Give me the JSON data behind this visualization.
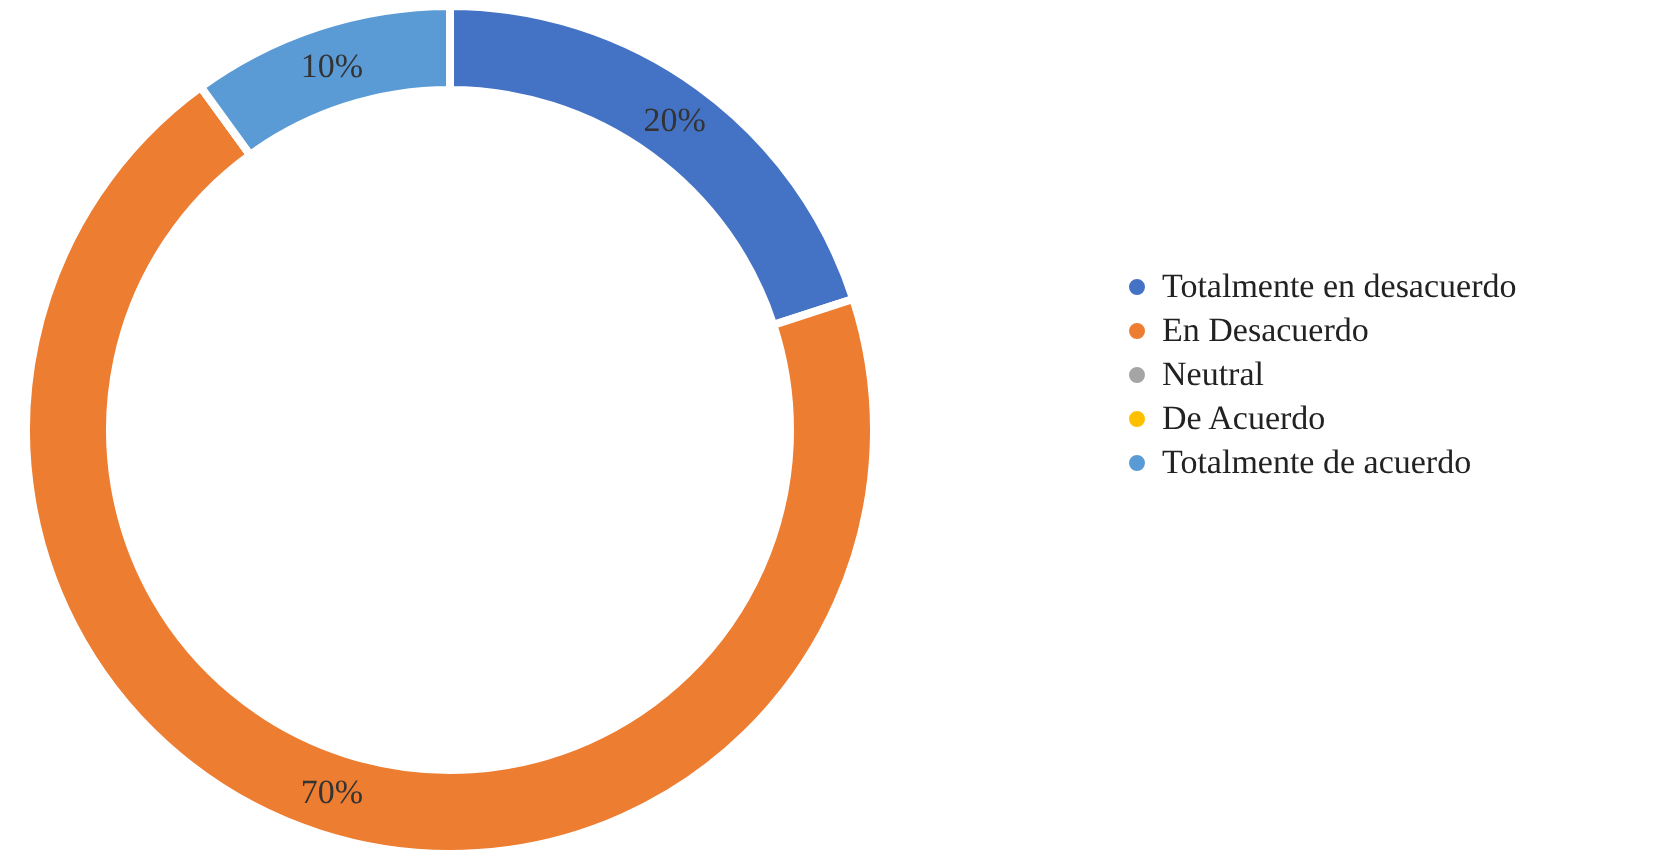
{
  "chart_data": {
    "type": "donut",
    "categories": [
      "Totalmente en desacuerdo",
      "En Desacuerdo",
      "Neutral",
      "De Acuerdo",
      "Totalmente de acuerdo"
    ],
    "values": [
      20,
      70,
      0,
      0,
      10
    ],
    "colors": [
      "#4472c4",
      "#ed7d31",
      "#a5a5a5",
      "#ffc000",
      "#5b9bd5"
    ],
    "value_labels": [
      "20%",
      "70%",
      null,
      null,
      "10%"
    ],
    "legend": "right"
  }
}
